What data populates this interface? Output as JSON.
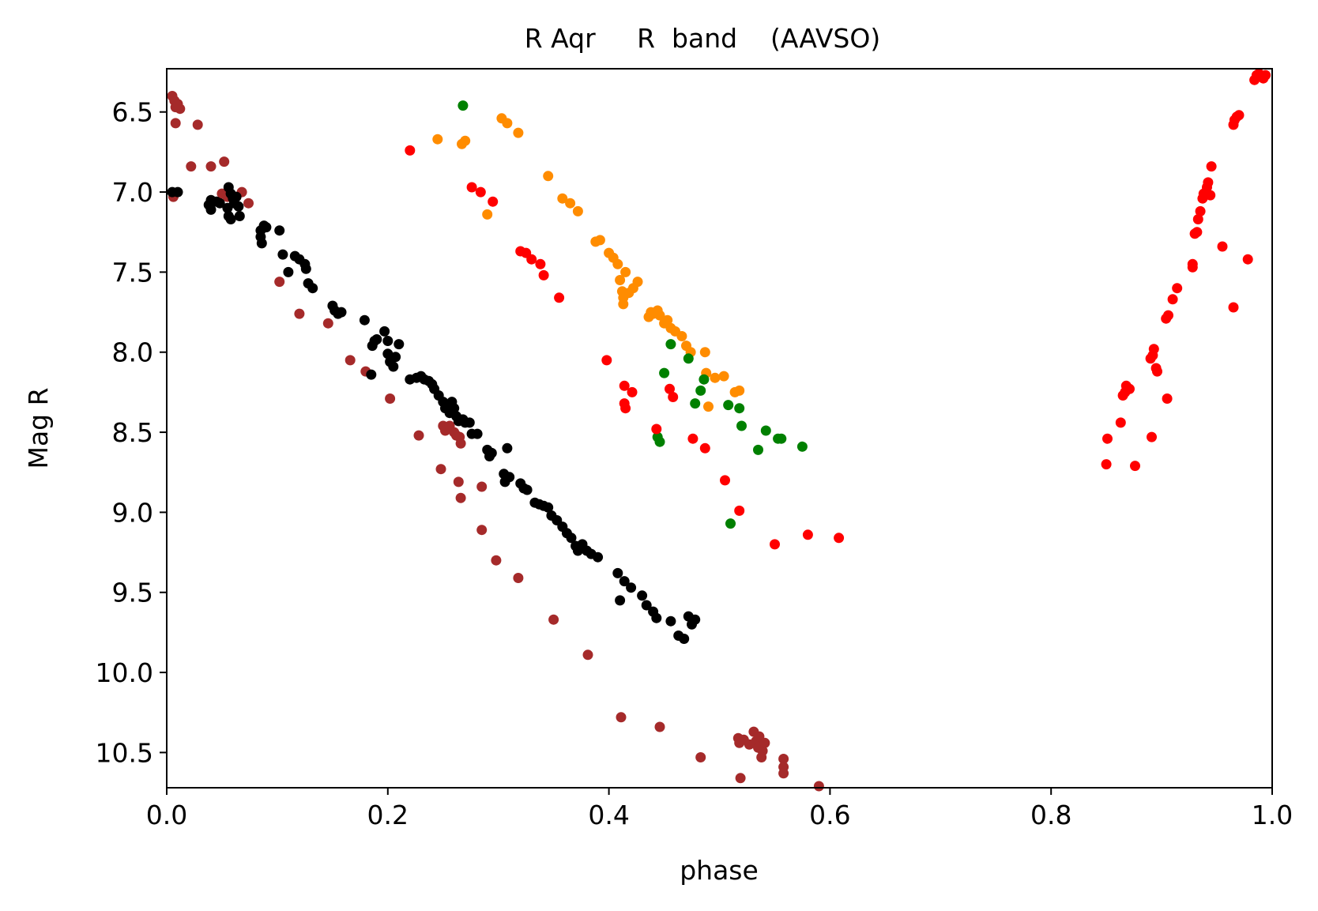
{
  "chart_data": {
    "type": "scatter",
    "title": "R Aqr     R  band    (AAVSO)",
    "xlabel": "phase",
    "ylabel": "Mag R",
    "xlim": [
      0.0,
      1.0
    ],
    "ylim": [
      10.72,
      6.23
    ],
    "y_inverted": true,
    "grid": false,
    "legend": "none",
    "xticks": [
      "0.0",
      "0.2",
      "0.4",
      "0.6",
      "0.8",
      "1.0"
    ],
    "xtick_values": [
      0.0,
      0.2,
      0.4,
      0.6,
      0.8,
      1.0
    ],
    "yticks": [
      "6.5",
      "7.0",
      "7.5",
      "8.0",
      "8.5",
      "9.0",
      "9.5",
      "10.0",
      "10.5"
    ],
    "ytick_values": [
      6.5,
      7.0,
      7.5,
      8.0,
      8.5,
      9.0,
      9.5,
      10.0,
      10.5
    ],
    "series": [
      {
        "color": "#a52a2a",
        "points": [
          [
            0.005,
            6.4
          ],
          [
            0.007,
            6.43
          ],
          [
            0.008,
            6.47
          ],
          [
            0.01,
            6.45
          ],
          [
            0.012,
            6.48
          ],
          [
            0.008,
            6.57
          ],
          [
            0.006,
            7.03
          ],
          [
            0.028,
            6.58
          ],
          [
            0.022,
            6.84
          ],
          [
            0.04,
            6.84
          ],
          [
            0.052,
            6.81
          ],
          [
            0.05,
            7.01
          ],
          [
            0.055,
            7.03
          ],
          [
            0.068,
            7.0
          ],
          [
            0.074,
            7.07
          ],
          [
            0.102,
            7.56
          ],
          [
            0.12,
            7.76
          ],
          [
            0.146,
            7.82
          ],
          [
            0.166,
            8.05
          ],
          [
            0.18,
            8.12
          ],
          [
            0.202,
            8.29
          ],
          [
            0.228,
            8.52
          ],
          [
            0.25,
            8.46
          ],
          [
            0.252,
            8.49
          ],
          [
            0.256,
            8.46
          ],
          [
            0.26,
            8.5
          ],
          [
            0.262,
            8.52
          ],
          [
            0.265,
            8.53
          ],
          [
            0.266,
            8.57
          ],
          [
            0.248,
            8.73
          ],
          [
            0.264,
            8.81
          ],
          [
            0.266,
            8.91
          ],
          [
            0.285,
            8.84
          ],
          [
            0.285,
            9.11
          ],
          [
            0.298,
            9.3
          ],
          [
            0.318,
            9.41
          ],
          [
            0.35,
            9.67
          ],
          [
            0.381,
            9.89
          ],
          [
            0.411,
            10.28
          ],
          [
            0.446,
            10.34
          ],
          [
            0.483,
            10.53
          ],
          [
            0.517,
            10.41
          ],
          [
            0.518,
            10.44
          ],
          [
            0.522,
            10.42
          ],
          [
            0.527,
            10.45
          ],
          [
            0.531,
            10.37
          ],
          [
            0.533,
            10.43
          ],
          [
            0.535,
            10.47
          ],
          [
            0.536,
            10.4
          ],
          [
            0.539,
            10.49
          ],
          [
            0.541,
            10.44
          ],
          [
            0.538,
            10.53
          ],
          [
            0.519,
            10.66
          ],
          [
            0.558,
            10.54
          ],
          [
            0.558,
            10.59
          ],
          [
            0.558,
            10.63
          ],
          [
            0.59,
            10.71
          ]
        ]
      },
      {
        "color": "#000000",
        "points": [
          [
            0.005,
            7.0
          ],
          [
            0.01,
            7.0
          ],
          [
            0.04,
            7.05
          ],
          [
            0.038,
            7.08
          ],
          [
            0.04,
            7.11
          ],
          [
            0.045,
            7.06
          ],
          [
            0.048,
            7.07
          ],
          [
            0.055,
            7.1
          ],
          [
            0.056,
            7.15
          ],
          [
            0.058,
            7.17
          ],
          [
            0.056,
            6.97
          ],
          [
            0.058,
            7.01
          ],
          [
            0.06,
            7.04
          ],
          [
            0.061,
            7.07
          ],
          [
            0.063,
            7.03
          ],
          [
            0.065,
            7.09
          ],
          [
            0.066,
            7.15
          ],
          [
            0.085,
            7.24
          ],
          [
            0.088,
            7.21
          ],
          [
            0.085,
            7.28
          ],
          [
            0.086,
            7.32
          ],
          [
            0.09,
            7.22
          ],
          [
            0.102,
            7.24
          ],
          [
            0.105,
            7.39
          ],
          [
            0.11,
            7.5
          ],
          [
            0.116,
            7.4
          ],
          [
            0.12,
            7.42
          ],
          [
            0.125,
            7.45
          ],
          [
            0.126,
            7.48
          ],
          [
            0.128,
            7.57
          ],
          [
            0.132,
            7.6
          ],
          [
            0.15,
            7.71
          ],
          [
            0.152,
            7.74
          ],
          [
            0.155,
            7.76
          ],
          [
            0.158,
            7.75
          ],
          [
            0.179,
            7.8
          ],
          [
            0.186,
            7.96
          ],
          [
            0.188,
            7.93
          ],
          [
            0.185,
            8.14
          ],
          [
            0.19,
            7.92
          ],
          [
            0.197,
            7.87
          ],
          [
            0.2,
            7.93
          ],
          [
            0.2,
            8.01
          ],
          [
            0.202,
            8.06
          ],
          [
            0.205,
            8.09
          ],
          [
            0.207,
            8.03
          ],
          [
            0.21,
            7.95
          ],
          [
            0.22,
            8.17
          ],
          [
            0.226,
            8.16
          ],
          [
            0.23,
            8.15
          ],
          [
            0.233,
            8.17
          ],
          [
            0.237,
            8.18
          ],
          [
            0.24,
            8.2
          ],
          [
            0.242,
            8.23
          ],
          [
            0.246,
            8.27
          ],
          [
            0.25,
            8.31
          ],
          [
            0.252,
            8.35
          ],
          [
            0.254,
            8.33
          ],
          [
            0.256,
            8.38
          ],
          [
            0.258,
            8.31
          ],
          [
            0.26,
            8.35
          ],
          [
            0.262,
            8.4
          ],
          [
            0.264,
            8.43
          ],
          [
            0.268,
            8.42
          ],
          [
            0.27,
            8.44
          ],
          [
            0.274,
            8.44
          ],
          [
            0.276,
            8.51
          ],
          [
            0.281,
            8.51
          ],
          [
            0.29,
            8.61
          ],
          [
            0.292,
            8.65
          ],
          [
            0.294,
            8.63
          ],
          [
            0.305,
            8.76
          ],
          [
            0.306,
            8.81
          ],
          [
            0.308,
            8.6
          ],
          [
            0.31,
            8.78
          ],
          [
            0.32,
            8.82
          ],
          [
            0.323,
            8.85
          ],
          [
            0.326,
            8.86
          ],
          [
            0.333,
            8.94
          ],
          [
            0.337,
            8.95
          ],
          [
            0.341,
            8.96
          ],
          [
            0.345,
            8.97
          ],
          [
            0.348,
            9.02
          ],
          [
            0.353,
            9.05
          ],
          [
            0.358,
            9.09
          ],
          [
            0.362,
            9.13
          ],
          [
            0.366,
            9.16
          ],
          [
            0.37,
            9.21
          ],
          [
            0.372,
            9.24
          ],
          [
            0.376,
            9.2
          ],
          [
            0.38,
            9.24
          ],
          [
            0.384,
            9.26
          ],
          [
            0.39,
            9.28
          ],
          [
            0.408,
            9.38
          ],
          [
            0.41,
            9.55
          ],
          [
            0.414,
            9.43
          ],
          [
            0.42,
            9.47
          ],
          [
            0.43,
            9.52
          ],
          [
            0.434,
            9.58
          ],
          [
            0.44,
            9.62
          ],
          [
            0.443,
            9.66
          ],
          [
            0.456,
            9.68
          ],
          [
            0.463,
            9.77
          ],
          [
            0.468,
            9.79
          ],
          [
            0.472,
            9.65
          ],
          [
            0.475,
            9.7
          ],
          [
            0.478,
            9.67
          ]
        ]
      },
      {
        "color": "#ff8c00",
        "points": [
          [
            0.245,
            6.67
          ],
          [
            0.267,
            6.7
          ],
          [
            0.27,
            6.68
          ],
          [
            0.29,
            7.14
          ],
          [
            0.303,
            6.54
          ],
          [
            0.308,
            6.57
          ],
          [
            0.318,
            6.63
          ],
          [
            0.345,
            6.9
          ],
          [
            0.358,
            7.04
          ],
          [
            0.365,
            7.07
          ],
          [
            0.372,
            7.12
          ],
          [
            0.388,
            7.31
          ],
          [
            0.392,
            7.3
          ],
          [
            0.4,
            7.38
          ],
          [
            0.404,
            7.41
          ],
          [
            0.408,
            7.45
          ],
          [
            0.41,
            7.55
          ],
          [
            0.412,
            7.62
          ],
          [
            0.413,
            7.66
          ],
          [
            0.413,
            7.7
          ],
          [
            0.415,
            7.5
          ],
          [
            0.418,
            7.63
          ],
          [
            0.422,
            7.6
          ],
          [
            0.426,
            7.56
          ],
          [
            0.436,
            7.78
          ],
          [
            0.438,
            7.75
          ],
          [
            0.44,
            7.76
          ],
          [
            0.444,
            7.74
          ],
          [
            0.446,
            7.77
          ],
          [
            0.45,
            7.82
          ],
          [
            0.453,
            7.8
          ],
          [
            0.456,
            7.85
          ],
          [
            0.46,
            7.87
          ],
          [
            0.466,
            7.9
          ],
          [
            0.47,
            7.96
          ],
          [
            0.474,
            8.0
          ],
          [
            0.487,
            8.0
          ],
          [
            0.488,
            8.13
          ],
          [
            0.49,
            8.34
          ],
          [
            0.496,
            8.16
          ],
          [
            0.504,
            8.15
          ],
          [
            0.514,
            8.25
          ],
          [
            0.518,
            8.24
          ]
        ]
      },
      {
        "color": "#008000",
        "points": [
          [
            0.268,
            6.46
          ],
          [
            0.45,
            8.13
          ],
          [
            0.456,
            7.95
          ],
          [
            0.472,
            8.04
          ],
          [
            0.478,
            8.32
          ],
          [
            0.483,
            8.24
          ],
          [
            0.486,
            8.17
          ],
          [
            0.444,
            8.53
          ],
          [
            0.446,
            8.56
          ],
          [
            0.508,
            8.33
          ],
          [
            0.518,
            8.35
          ],
          [
            0.52,
            8.46
          ],
          [
            0.51,
            9.07
          ],
          [
            0.535,
            8.61
          ],
          [
            0.542,
            8.49
          ],
          [
            0.553,
            8.54
          ],
          [
            0.556,
            8.54
          ],
          [
            0.575,
            8.59
          ]
        ]
      },
      {
        "color": "#ff0000",
        "points": [
          [
            0.22,
            6.74
          ],
          [
            0.276,
            6.97
          ],
          [
            0.284,
            7.0
          ],
          [
            0.295,
            7.06
          ],
          [
            0.32,
            7.37
          ],
          [
            0.325,
            7.38
          ],
          [
            0.33,
            7.42
          ],
          [
            0.338,
            7.45
          ],
          [
            0.341,
            7.52
          ],
          [
            0.355,
            7.66
          ],
          [
            0.398,
            8.05
          ],
          [
            0.414,
            8.21
          ],
          [
            0.414,
            8.32
          ],
          [
            0.415,
            8.35
          ],
          [
            0.421,
            8.25
          ],
          [
            0.443,
            8.48
          ],
          [
            0.455,
            8.23
          ],
          [
            0.458,
            8.28
          ],
          [
            0.476,
            8.54
          ],
          [
            0.487,
            8.6
          ],
          [
            0.505,
            8.8
          ],
          [
            0.518,
            8.99
          ],
          [
            0.55,
            9.2
          ],
          [
            0.58,
            9.14
          ],
          [
            0.608,
            9.16
          ],
          [
            0.85,
            8.7
          ],
          [
            0.851,
            8.54
          ],
          [
            0.863,
            8.44
          ],
          [
            0.865,
            8.27
          ],
          [
            0.867,
            8.25
          ],
          [
            0.868,
            8.21
          ],
          [
            0.871,
            8.23
          ],
          [
            0.876,
            8.71
          ],
          [
            0.89,
            8.04
          ],
          [
            0.892,
            8.02
          ],
          [
            0.893,
            7.98
          ],
          [
            0.895,
            8.1
          ],
          [
            0.896,
            8.12
          ],
          [
            0.891,
            8.53
          ],
          [
            0.904,
            7.79
          ],
          [
            0.906,
            7.77
          ],
          [
            0.905,
            8.29
          ],
          [
            0.91,
            7.67
          ],
          [
            0.914,
            7.6
          ],
          [
            0.928,
            7.47
          ],
          [
            0.928,
            7.45
          ],
          [
            0.93,
            7.26
          ],
          [
            0.932,
            7.25
          ],
          [
            0.933,
            7.17
          ],
          [
            0.935,
            7.12
          ],
          [
            0.937,
            7.04
          ],
          [
            0.938,
            7.01
          ],
          [
            0.94,
            7.0
          ],
          [
            0.941,
            6.97
          ],
          [
            0.942,
            6.94
          ],
          [
            0.944,
            7.02
          ],
          [
            0.945,
            6.84
          ],
          [
            0.955,
            7.34
          ],
          [
            0.965,
            6.58
          ],
          [
            0.966,
            6.55
          ],
          [
            0.968,
            6.53
          ],
          [
            0.97,
            6.52
          ],
          [
            0.965,
            7.72
          ],
          [
            0.978,
            7.42
          ],
          [
            0.984,
            6.3
          ],
          [
            0.986,
            6.27
          ],
          [
            0.988,
            6.26
          ],
          [
            0.99,
            6.28
          ],
          [
            0.992,
            6.29
          ],
          [
            0.994,
            6.27
          ]
        ]
      }
    ]
  }
}
